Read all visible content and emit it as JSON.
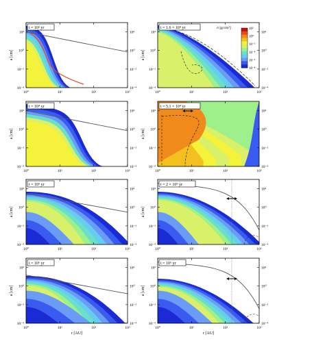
{
  "figure": {
    "xlabel": "r [AU]",
    "ylabel": "a [cm]",
    "colorbar_label": "σ [g/cm²]"
  },
  "colors": {
    "levels": [
      "#ffffff",
      "#1a2bd6",
      "#3a5bf0",
      "#6a9cf7",
      "#66ccf0",
      "#6ae0c8",
      "#9ef08a",
      "#d8f06a",
      "#f4f23a",
      "#f4c020",
      "#f08a1a",
      "#e84a18",
      "#c81010"
    ],
    "drift_line": "#555555",
    "frag_line": "#333333",
    "axis": "#000000"
  },
  "chart_data": [
    {
      "type": "heatmap",
      "panel": "a",
      "time_label": "t = 10² yr",
      "x": {
        "label": "r [AU]",
        "scale": "log",
        "range": [
          1,
          1000
        ],
        "ticks": [
          "10⁰",
          "10¹",
          "10²",
          "10³"
        ]
      },
      "y": {
        "label": "a [cm]",
        "scale": "log",
        "range": [
          0.0001,
          1000
        ],
        "ticks": [
          "10⁻⁴",
          "10⁻²",
          "10⁰",
          "10²"
        ]
      },
      "has_colorbar": false,
      "curve": {
        "kind": "line",
        "points": [
          [
            1,
            100
          ],
          [
            1000,
            0.7
          ]
        ]
      },
      "annotations": []
    },
    {
      "type": "heatmap",
      "panel": "b",
      "time_label": "t = 1.6 × 10⁴ yr",
      "x": {
        "label": "r [AU]",
        "scale": "log",
        "range": [
          1,
          1000
        ],
        "ticks": [
          "10⁰",
          "10¹",
          "10²",
          "10³"
        ]
      },
      "y": {
        "label": "a [cm]",
        "scale": "log",
        "range": [
          0.0001,
          1000
        ],
        "ticks": [
          "10⁻⁴",
          "10⁻²",
          "10⁰",
          "10²"
        ]
      },
      "has_colorbar": true,
      "colorbar": {
        "label": "σ [g/cm²]",
        "ticks": [
          "10⁻⁸",
          "10⁻⁶",
          "10⁻⁴",
          "10⁻²",
          "10⁰",
          "10²"
        ]
      },
      "annotations": [
        "dashed-boundary"
      ]
    },
    {
      "type": "heatmap",
      "panel": "c",
      "time_label": "t = 10⁴ yr",
      "x": {
        "label": "r [AU]",
        "scale": "log",
        "range": [
          1,
          1000
        ],
        "ticks": [
          "10⁰",
          "10¹",
          "10²",
          "10³"
        ]
      },
      "y": {
        "label": "a [cm]",
        "scale": "log",
        "range": [
          0.0001,
          1000
        ],
        "ticks": [
          "10⁻⁴",
          "10⁻²",
          "10⁰",
          "10²"
        ]
      },
      "has_colorbar": false,
      "curve": {
        "kind": "line",
        "points": [
          [
            1,
            100
          ],
          [
            1000,
            0.7
          ]
        ]
      },
      "annotations": []
    },
    {
      "type": "heatmap",
      "panel": "d",
      "time_label": "t = 5.1 × 10⁴ yr",
      "x": {
        "label": "r [AU]",
        "scale": "log",
        "range": [
          1,
          1000
        ],
        "ticks": [
          "10⁰",
          "10¹",
          "10²",
          "10³"
        ]
      },
      "y": {
        "label": "a [cm]",
        "scale": "log",
        "range": [
          0.0001,
          1000
        ],
        "ticks": [
          "10⁻⁴",
          "10⁻²",
          "10⁰",
          "10²"
        ]
      },
      "has_colorbar": false,
      "annotations": [
        "dashed-boundary",
        "arrow"
      ]
    },
    {
      "type": "heatmap",
      "panel": "e",
      "time_label": "t = 10⁵ yr",
      "x": {
        "label": "r [AU]",
        "scale": "log",
        "range": [
          1,
          1000
        ],
        "ticks": [
          "10⁰",
          "10¹",
          "10²",
          "10³"
        ]
      },
      "y": {
        "label": "a [cm]",
        "scale": "log",
        "range": [
          0.0001,
          1000
        ],
        "ticks": [
          "10⁻⁴",
          "10⁻²",
          "10⁰",
          "10²"
        ]
      },
      "has_colorbar": false,
      "curve": {
        "kind": "line",
        "points": [
          [
            1,
            30
          ],
          [
            1000,
            0.3
          ]
        ]
      },
      "annotations": []
    },
    {
      "type": "heatmap",
      "panel": "f",
      "time_label": "t = 2 × 10⁵ yr",
      "x": {
        "label": "r [AU]",
        "scale": "log",
        "range": [
          1,
          1000
        ],
        "ticks": [
          "10⁰",
          "10¹",
          "10²",
          "10³"
        ]
      },
      "y": {
        "label": "a [cm]",
        "scale": "log",
        "range": [
          0.0001,
          1000
        ],
        "ticks": [
          "10⁻⁴",
          "10⁻²",
          "10⁰",
          "10²"
        ]
      },
      "has_colorbar": false,
      "curve": {
        "kind": "arc"
      },
      "annotations": [
        "arrow",
        "dotted-vertical"
      ]
    },
    {
      "type": "heatmap",
      "panel": "g",
      "time_label": "t = 10⁶ yr",
      "x": {
        "label": "r [AU]",
        "scale": "log",
        "range": [
          1,
          1000
        ],
        "ticks": [
          "10⁰",
          "10¹",
          "10²",
          "10³"
        ]
      },
      "y": {
        "label": "a [cm]",
        "scale": "log",
        "range": [
          0.0001,
          1000
        ],
        "ticks": [
          "10⁻⁴",
          "10⁻²",
          "10⁰",
          "10²"
        ]
      },
      "has_colorbar": false,
      "curve": {
        "kind": "line",
        "points": [
          [
            1,
            15
          ],
          [
            1000,
            0.15
          ]
        ]
      },
      "annotations": []
    },
    {
      "type": "heatmap",
      "panel": "h",
      "time_label": "t = 10⁶ yr",
      "x": {
        "label": "r [AU]",
        "scale": "log",
        "range": [
          1,
          1000
        ],
        "ticks": [
          "10⁰",
          "10¹",
          "10²",
          "10³"
        ]
      },
      "y": {
        "label": "a [cm]",
        "scale": "log",
        "range": [
          0.0001,
          1000
        ],
        "ticks": [
          "10⁻⁴",
          "10⁻²",
          "10⁰",
          "10²"
        ]
      },
      "has_colorbar": false,
      "curve": {
        "kind": "arc"
      },
      "annotations": [
        "arrow",
        "dotted-vertical"
      ]
    }
  ]
}
